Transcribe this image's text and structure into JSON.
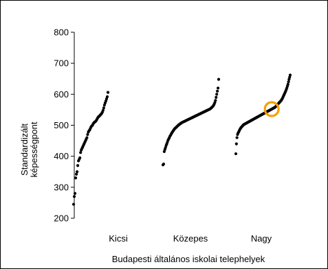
{
  "chart_data": {
    "type": "scatter",
    "title": "",
    "xlabel": "Budapesti általános iskolai telephelyek",
    "ylabel_lines": [
      "Standardizált",
      "képességpont"
    ],
    "ylim": [
      200,
      800
    ],
    "yticks": [
      200,
      300,
      400,
      500,
      600,
      700,
      800
    ],
    "ytick_labels": [
      "200",
      "300",
      "400",
      "500",
      "600",
      "700",
      "800"
    ],
    "categories": [
      "Kicsi",
      "Közepes",
      "Nagy"
    ],
    "grid": false,
    "legend": "none",
    "series": [
      {
        "category": "Kicsi",
        "values": [
          245,
          270,
          280,
          330,
          342,
          350,
          370,
          385,
          390,
          395,
          412,
          420,
          425,
          430,
          435,
          440,
          445,
          450,
          455,
          460,
          470,
          478,
          482,
          485,
          490,
          495,
          498,
          500,
          505,
          508,
          510,
          512,
          514,
          518,
          522,
          526,
          528,
          530,
          533,
          535,
          538,
          542,
          548,
          556,
          565,
          572,
          578,
          585,
          592,
          606
        ]
      },
      {
        "category": "Közepes",
        "values": [
          372,
          375,
          415,
          422,
          428,
          435,
          440,
          446,
          452,
          456,
          460,
          465,
          468,
          472,
          476,
          479,
          482,
          485,
          488,
          490,
          492,
          494,
          496,
          498,
          500,
          502,
          503,
          505,
          506,
          508,
          509,
          510,
          511,
          512,
          513,
          514,
          515,
          516,
          517,
          518,
          519,
          520,
          521,
          522,
          523,
          524,
          525,
          526,
          527,
          528,
          529,
          530,
          531,
          532,
          533,
          534,
          535,
          536,
          537,
          538,
          539,
          540,
          541,
          542,
          543,
          544,
          545,
          546,
          547,
          548,
          549,
          550,
          551,
          552,
          553,
          555,
          557,
          559,
          561,
          564,
          568,
          573,
          580,
          590,
          600,
          610,
          620,
          648
        ]
      },
      {
        "category": "Nagy",
        "values": [
          408,
          440,
          460,
          470,
          475,
          478,
          482,
          486,
          489,
          492,
          494,
          496,
          498,
          500,
          502,
          503,
          504,
          505,
          506,
          507,
          508,
          509,
          510,
          511,
          512,
          513,
          514,
          515,
          516,
          517,
          518,
          519,
          520,
          521,
          522,
          523,
          524,
          525,
          526,
          527,
          528,
          529,
          530,
          531,
          532,
          533,
          534,
          535,
          536,
          537,
          538,
          539,
          540,
          541,
          542,
          543,
          544,
          545,
          546,
          547,
          548,
          549,
          550,
          551,
          552,
          553,
          554,
          555,
          556,
          557,
          558,
          560,
          562,
          564,
          566,
          568,
          570,
          572,
          574,
          576,
          578,
          580,
          583,
          586,
          590,
          594,
          598,
          602,
          606,
          610,
          615,
          620,
          626,
          632,
          640,
          648,
          655,
          662
        ]
      }
    ],
    "highlight": {
      "category": "Nagy",
      "value": 552,
      "color": "#f5a000"
    },
    "colors": {
      "points": "#000000",
      "axis": "#000000",
      "highlight": "#f5a000"
    }
  }
}
